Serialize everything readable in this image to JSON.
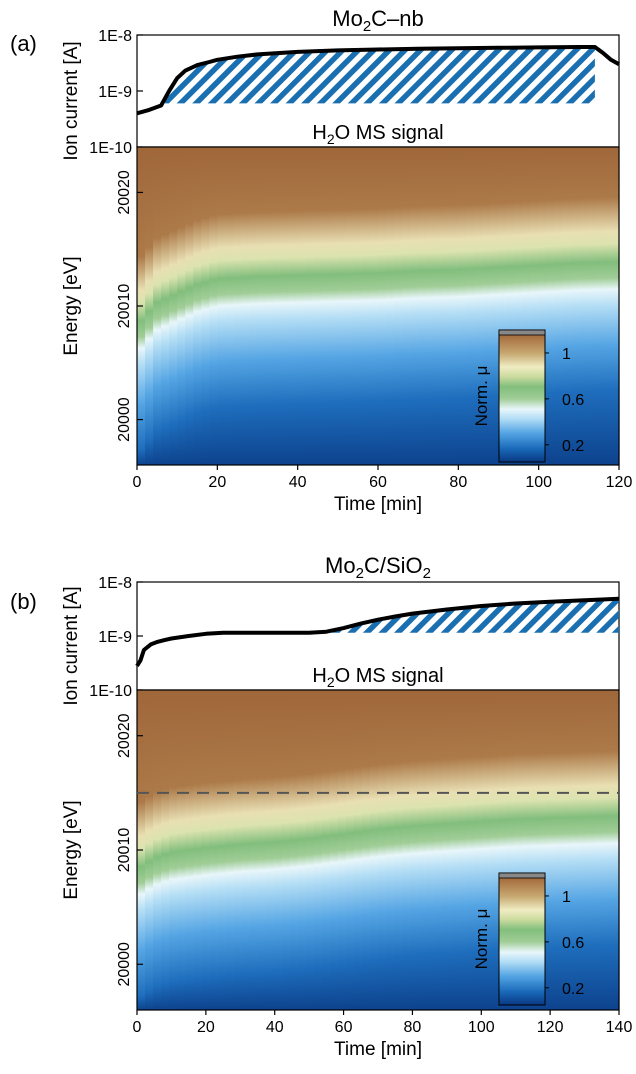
{
  "chart_data": [
    {
      "panel_label": "(a)",
      "title": "Mo2C–nb",
      "title_parts": {
        "base": "Mo",
        "sub": "2",
        "rest": "C–nb"
      },
      "type": "line",
      "top_plot": {
        "ylabel": "Ion current [A]",
        "yscale": "log",
        "ylim": [
          1e-10,
          1e-08
        ],
        "yticks": [
          "1E-10",
          "1E-9",
          "1E-8"
        ],
        "annotation": "H2O MS signal",
        "annotation_parts": {
          "base": "H",
          "sub": "2",
          "rest": "O MS signal"
        },
        "series": [
          {
            "color": "#000000",
            "x": [
              0,
              3,
              6,
              8,
              10,
              12,
              15,
              18,
              20,
              25,
              30,
              40,
              50,
              60,
              70,
              80,
              90,
              100,
              110,
              114,
              116,
              118,
              120
            ],
            "y": [
              4e-10,
              4.6e-10,
              5.5e-10,
              1e-09,
              1.7e-09,
              2.3e-09,
              2.9e-09,
              3.3e-09,
              3.6e-09,
              4.1e-09,
              4.5e-09,
              5e-09,
              5.3e-09,
              5.5e-09,
              5.7e-09,
              5.8e-09,
              5.9e-09,
              6e-09,
              6.1e-09,
              6.1e-09,
              4.8e-09,
              3.6e-09,
              3e-09
            ]
          }
        ],
        "hatched_region": {
          "x": [
            7,
            114
          ],
          "y_floor": 6e-10,
          "color": "#1a6fb0"
        }
      },
      "heatmap": {
        "type": "heatmap",
        "xlabel": "Time [min]",
        "ylabel": "Energy [eV]",
        "xlim": [
          0,
          120
        ],
        "xticks": [
          0,
          20,
          40,
          60,
          80,
          100,
          120
        ],
        "ylim": [
          19996,
          20024
        ],
        "yticks": [
          20000,
          20010,
          20020
        ],
        "edge_mid": {
          "x": [
            0,
            5,
            10,
            15,
            20,
            30,
            40,
            50,
            60,
            70,
            80,
            90,
            100,
            110,
            120
          ],
          "y": [
            20007.5,
            20009.5,
            20010.3,
            20011.1,
            20011.6,
            20011.8,
            20011.9,
            20012.0,
            20012.1,
            20012.3,
            20012.4,
            20012.6,
            20012.8,
            20013.0,
            20013.1
          ]
        },
        "colorbar": {
          "label": "Norm. μ",
          "ticks": [
            0.2,
            0.6,
            1
          ],
          "range": [
            0.05,
            1.2
          ]
        }
      }
    },
    {
      "panel_label": "(b)",
      "title": "Mo2C/SiO2",
      "title_parts": {
        "base": "Mo",
        "sub": "2",
        "rest": "C/SiO",
        "sub2": "2"
      },
      "type": "line",
      "top_plot": {
        "ylabel": "Ion current [A]",
        "yscale": "log",
        "ylim": [
          1e-10,
          1e-08
        ],
        "yticks": [
          "1E-10",
          "1E-9",
          "1E-8"
        ],
        "annotation": "H2O MS signal",
        "annotation_parts": {
          "base": "H",
          "sub": "2",
          "rest": "O MS signal"
        },
        "series": [
          {
            "color": "#000000",
            "x": [
              0,
              1,
              2,
              4,
              6,
              8,
              10,
              15,
              20,
              25,
              30,
              40,
              50,
              55,
              60,
              65,
              70,
              75,
              80,
              90,
              100,
              110,
              120,
              130,
              140
            ],
            "y": [
              2.8e-10,
              3.5e-10,
              5.5e-10,
              7e-10,
              7.8e-10,
              8.4e-10,
              9e-10,
              1e-09,
              1.1e-09,
              1.15e-09,
              1.15e-09,
              1.15e-09,
              1.15e-09,
              1.2e-09,
              1.4e-09,
              1.7e-09,
              2e-09,
              2.3e-09,
              2.6e-09,
              3.1e-09,
              3.6e-09,
              4e-09,
              4.3e-09,
              4.6e-09,
              4.9e-09
            ]
          }
        ],
        "hatched_region": {
          "x": [
            55,
            140
          ],
          "y_floor": 1.15e-09,
          "color": "#1a6fb0"
        }
      },
      "heatmap": {
        "type": "heatmap",
        "xlabel": "Time [min]",
        "ylabel": "Energy [eV]",
        "xlim": [
          0,
          140
        ],
        "xticks": [
          0,
          20,
          40,
          60,
          80,
          100,
          120,
          140
        ],
        "ylim": [
          19996,
          20024
        ],
        "yticks": [
          20000,
          20010,
          20020
        ],
        "dashed_line_y": 20015,
        "edge_mid": {
          "x": [
            0,
            5,
            10,
            20,
            30,
            40,
            50,
            60,
            70,
            80,
            90,
            100,
            110,
            120,
            130,
            140
          ],
          "y": [
            20007.5,
            20008.5,
            20009.0,
            20009.4,
            20009.7,
            20009.9,
            20010.2,
            20010.6,
            20011.0,
            20011.3,
            20011.5,
            20011.7,
            20011.9,
            20012.0,
            20012.1,
            20012.2
          ]
        },
        "colorbar": {
          "label": "Norm. μ",
          "ticks": [
            0.2,
            0.6,
            1
          ],
          "range": [
            0.05,
            1.2
          ]
        }
      }
    }
  ]
}
